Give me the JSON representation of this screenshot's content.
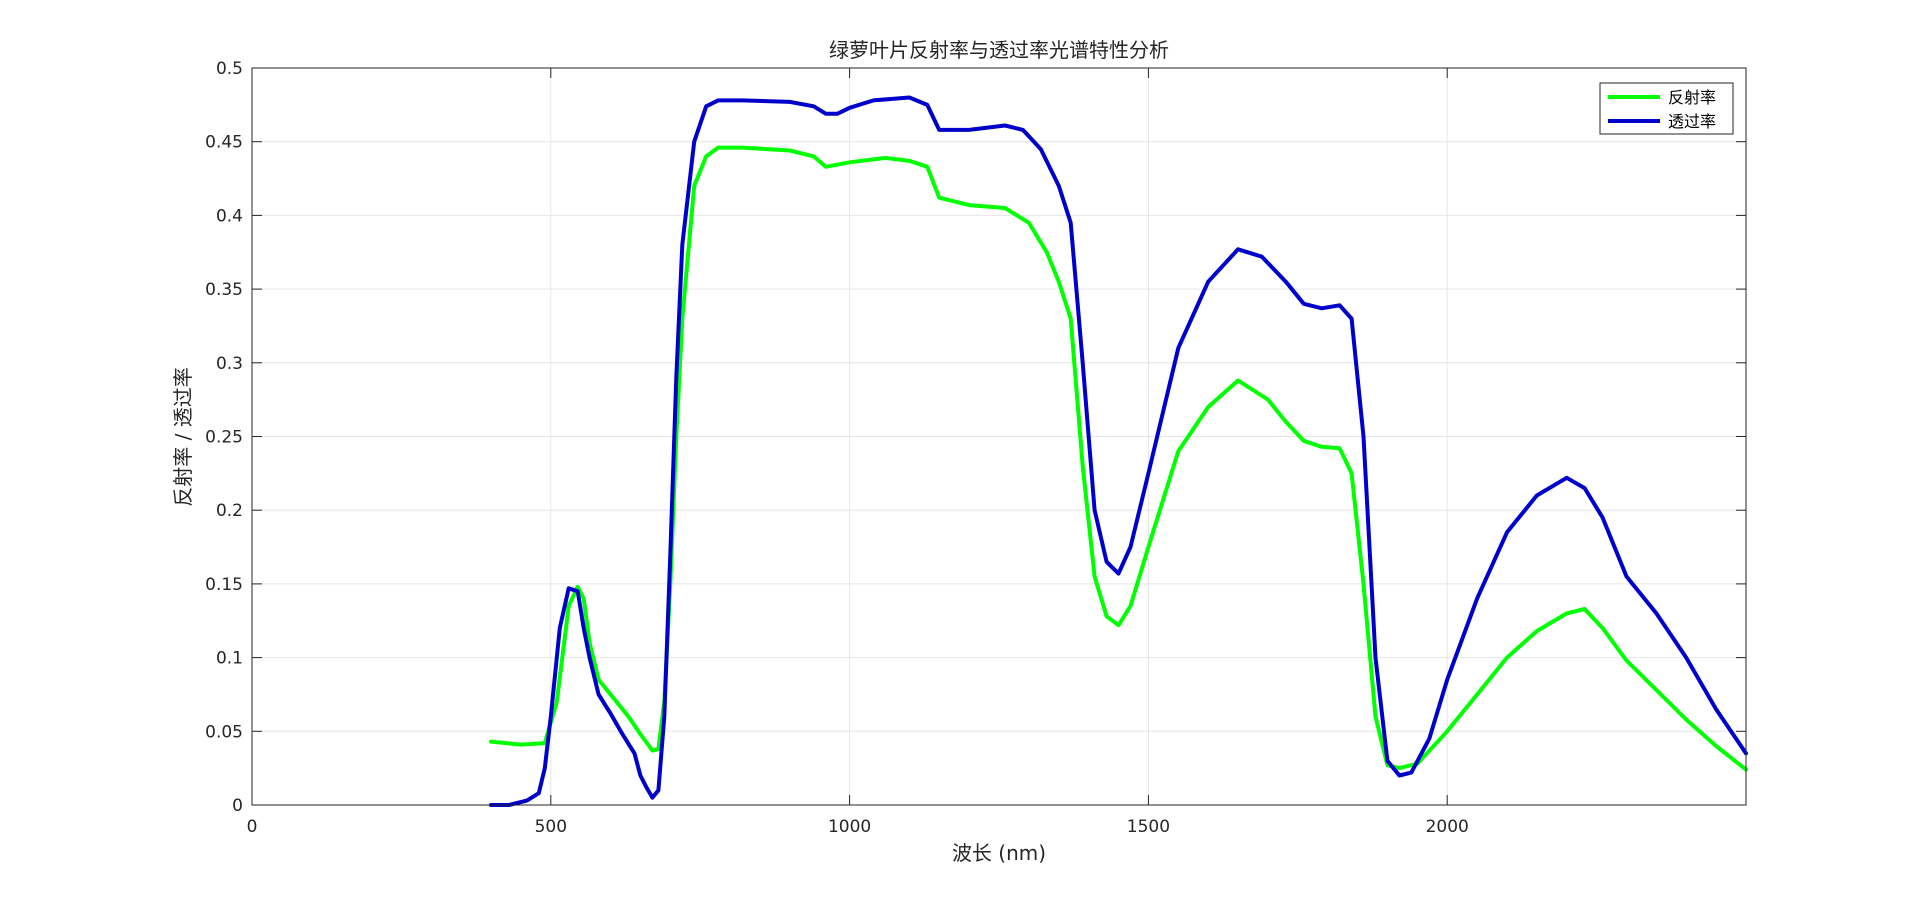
{
  "chart_data": {
    "type": "line",
    "title": "绿萝叶片反射率与透过率光谱特性分析",
    "xlabel": "波长 (nm)",
    "ylabel": "反射率 / 透过率",
    "xlim": [
      0,
      2500
    ],
    "ylim": [
      0,
      0.5
    ],
    "xticks": [
      0,
      500,
      1000,
      1500,
      2000
    ],
    "yticks": [
      0,
      0.05,
      0.1,
      0.15,
      0.2,
      0.25,
      0.3,
      0.35,
      0.4,
      0.45,
      0.5
    ],
    "xtick_labels": [
      "0",
      "500",
      "1000",
      "1500",
      "2000"
    ],
    "ytick_labels": [
      "0",
      "0.05",
      "0.1",
      "0.15",
      "0.2",
      "0.25",
      "0.3",
      "0.35",
      "0.4",
      "0.45",
      "0.5"
    ],
    "grid": true,
    "legend_position": "top-right",
    "series": [
      {
        "name": "反射率",
        "color": "#00ff00",
        "x": [
          400,
          450,
          490,
          510,
          530,
          545,
          555,
          565,
          580,
          600,
          630,
          650,
          670,
          680,
          690,
          700,
          710,
          720,
          740,
          760,
          780,
          820,
          900,
          940,
          960,
          1000,
          1060,
          1100,
          1130,
          1150,
          1200,
          1260,
          1300,
          1330,
          1350,
          1370,
          1390,
          1410,
          1430,
          1450,
          1470,
          1500,
          1550,
          1600,
          1650,
          1700,
          1730,
          1760,
          1790,
          1820,
          1840,
          1860,
          1880,
          1900,
          1920,
          1950,
          2000,
          2050,
          2100,
          2150,
          2200,
          2230,
          2260,
          2300,
          2350,
          2400,
          2450,
          2500
        ],
        "y": [
          0.043,
          0.041,
          0.042,
          0.07,
          0.135,
          0.148,
          0.14,
          0.11,
          0.085,
          0.075,
          0.06,
          0.048,
          0.037,
          0.038,
          0.07,
          0.15,
          0.25,
          0.33,
          0.42,
          0.44,
          0.446,
          0.446,
          0.444,
          0.44,
          0.433,
          0.436,
          0.439,
          0.437,
          0.433,
          0.412,
          0.407,
          0.405,
          0.395,
          0.375,
          0.355,
          0.33,
          0.23,
          0.155,
          0.128,
          0.122,
          0.135,
          0.175,
          0.24,
          0.27,
          0.288,
          0.275,
          0.26,
          0.247,
          0.243,
          0.242,
          0.225,
          0.15,
          0.06,
          0.027,
          0.025,
          0.028,
          0.05,
          0.075,
          0.1,
          0.118,
          0.13,
          0.133,
          0.12,
          0.098,
          0.078,
          0.058,
          0.04,
          0.024
        ]
      },
      {
        "name": "透过率",
        "color": "#0000cd",
        "x": [
          400,
          430,
          460,
          480,
          490,
          500,
          515,
          530,
          545,
          555,
          565,
          580,
          600,
          620,
          640,
          650,
          660,
          670,
          680,
          690,
          700,
          710,
          720,
          740,
          760,
          780,
          820,
          900,
          940,
          960,
          980,
          1000,
          1040,
          1100,
          1130,
          1150,
          1200,
          1260,
          1290,
          1320,
          1350,
          1370,
          1390,
          1410,
          1430,
          1450,
          1470,
          1500,
          1550,
          1600,
          1650,
          1690,
          1730,
          1760,
          1790,
          1820,
          1840,
          1860,
          1880,
          1900,
          1920,
          1940,
          1970,
          2000,
          2050,
          2100,
          2150,
          2200,
          2230,
          2260,
          2300,
          2350,
          2400,
          2450,
          2500
        ],
        "y": [
          0,
          0,
          0.003,
          0.008,
          0.025,
          0.06,
          0.12,
          0.147,
          0.145,
          0.12,
          0.1,
          0.075,
          0.062,
          0.048,
          0.035,
          0.02,
          0.012,
          0.005,
          0.01,
          0.06,
          0.17,
          0.29,
          0.38,
          0.45,
          0.474,
          0.478,
          0.478,
          0.477,
          0.474,
          0.469,
          0.469,
          0.473,
          0.478,
          0.48,
          0.475,
          0.458,
          0.458,
          0.461,
          0.458,
          0.445,
          0.42,
          0.395,
          0.3,
          0.2,
          0.165,
          0.157,
          0.175,
          0.225,
          0.31,
          0.355,
          0.377,
          0.372,
          0.355,
          0.34,
          0.337,
          0.339,
          0.33,
          0.25,
          0.1,
          0.03,
          0.02,
          0.022,
          0.045,
          0.085,
          0.14,
          0.185,
          0.21,
          0.222,
          0.215,
          0.195,
          0.155,
          0.13,
          0.1,
          0.065,
          0.035
        ]
      }
    ]
  }
}
